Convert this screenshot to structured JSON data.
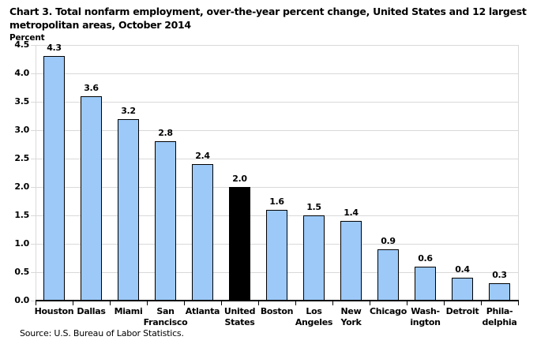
{
  "page": {
    "title_line1": "Chart 3. Total nonfarm employment, over-the-year percent change, United States and 12 largest",
    "title_line2": "metropolitan areas, October 2014",
    "y_axis_unit_label": "Percent",
    "source_note": "Source: U.S. Bureau of Labor Statistics."
  },
  "colors": {
    "bar_fill": "#9CC9F8",
    "bar_border": "#000000",
    "highlight_bar_fill": "#000000",
    "gridline": "#D9D9D9",
    "axis_line": "#000000",
    "text": "#000000",
    "background": "#FFFFFF"
  },
  "chart_data": {
    "type": "bar",
    "title": "Chart 3. Total nonfarm employment, over-the-year percent change, United States and 12 largest metropolitan areas, October 2014",
    "xlabel": "",
    "ylabel": "Percent",
    "ylim": [
      0,
      4.5
    ],
    "ytick_step": 0.5,
    "y_tick_labels": [
      "0.0",
      "0.5",
      "1.0",
      "1.5",
      "2.0",
      "2.5",
      "3.0",
      "3.5",
      "4.0",
      "4.5"
    ],
    "grid": true,
    "legend": false,
    "categories": [
      "Houston",
      "Dallas",
      "Miami",
      "San Francisco",
      "Atlanta",
      "United States",
      "Boston",
      "Los Angeles",
      "New York",
      "Chicago",
      "Washington",
      "Detroit",
      "Philadelphia"
    ],
    "tick_label_lines": [
      [
        "Houston"
      ],
      [
        "Dallas"
      ],
      [
        "Miami"
      ],
      [
        "San",
        "Francisco"
      ],
      [
        "Atlanta"
      ],
      [
        "United",
        "States"
      ],
      [
        "Boston"
      ],
      [
        "Los",
        "Angeles"
      ],
      [
        "New",
        "York"
      ],
      [
        "Chicago"
      ],
      [
        "Wash-",
        "ington"
      ],
      [
        "Detroit"
      ],
      [
        "Phila-",
        "delphia"
      ]
    ],
    "values": [
      4.3,
      3.6,
      3.2,
      2.8,
      2.4,
      2.0,
      1.6,
      1.5,
      1.4,
      0.9,
      0.6,
      0.4,
      0.3
    ],
    "value_labels": [
      "4.3",
      "3.6",
      "3.2",
      "2.8",
      "2.4",
      "2.0",
      "1.6",
      "1.5",
      "1.4",
      "0.9",
      "0.6",
      "0.4",
      "0.3"
    ],
    "highlight_index": 5,
    "highlight_category": "United States"
  }
}
